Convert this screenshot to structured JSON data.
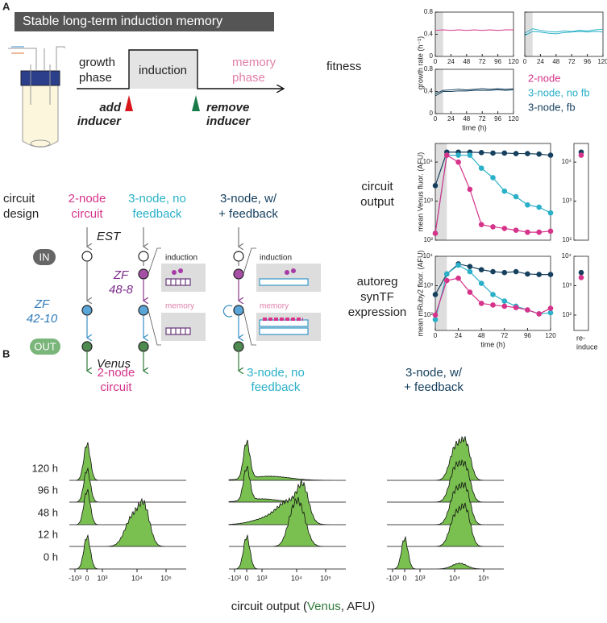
{
  "panel_labels": [
    "A",
    "B"
  ],
  "banner": "Stable long-term induction memory",
  "timeline": {
    "growth_phase": [
      "growth",
      "phase"
    ],
    "induction": "induction",
    "memory_phase": [
      "memory",
      "phase"
    ],
    "add_inducer": [
      "add",
      "inducer"
    ],
    "remove_inducer": [
      "remove",
      "inducer"
    ]
  },
  "fitness_label": "fitness",
  "diagram": {
    "circuit_design": [
      "circuit",
      "design"
    ],
    "columns": [
      [
        "2-node",
        "circuit"
      ],
      [
        "3-node, no",
        "feedback"
      ],
      [
        "3-node, w/",
        "+ feedback"
      ]
    ],
    "est": "EST",
    "in": "IN",
    "out": "OUT",
    "zf1": [
      "ZF",
      "42-10"
    ],
    "zf2": [
      "ZF",
      "48-8"
    ],
    "venus": "Venus",
    "inset_induction": "induction",
    "inset_memory": "memory"
  },
  "chart_data": [
    {
      "type": "line",
      "x": [
        0,
        12,
        24,
        36,
        48,
        60,
        72,
        84,
        96,
        108,
        120
      ],
      "xlim": [
        0,
        120
      ],
      "xticks": [
        0,
        24,
        48,
        72,
        96,
        120
      ],
      "ylim": [
        0,
        0.8
      ],
      "yticks": [
        0,
        0.4,
        0.8
      ],
      "induction_window": [
        0,
        12
      ],
      "series": [
        {
          "name": "2-node",
          "color": "#d6338a",
          "values": [
            0.47,
            0.48,
            0.47,
            0.48,
            0.47,
            0.48,
            0.47,
            0.48,
            0.47,
            0.48,
            0.48
          ]
        }
      ]
    },
    {
      "type": "line",
      "x": [
        0,
        12,
        24,
        36,
        48,
        60,
        72,
        84,
        96,
        108,
        120
      ],
      "xlim": [
        0,
        120
      ],
      "xticks": [
        0,
        24,
        48,
        72,
        96,
        120
      ],
      "ylim": [
        0,
        0.8
      ],
      "yticks": [
        0,
        0.4,
        0.8
      ],
      "induction_window": [
        0,
        12
      ],
      "series": [
        {
          "name": "3-node, no fb",
          "color": "#2ab0c8",
          "values": [
            0.42,
            0.5,
            0.47,
            0.45,
            0.44,
            0.46,
            0.45,
            0.47,
            0.46,
            0.48,
            0.49
          ]
        },
        {
          "color": "#2ab0c8",
          "values": [
            0.38,
            0.45,
            0.44,
            0.42,
            0.41,
            0.43,
            0.44,
            0.45,
            0.44,
            0.45,
            0.44
          ]
        }
      ]
    },
    {
      "type": "line",
      "x": [
        0,
        12,
        24,
        36,
        48,
        60,
        72,
        84,
        96,
        108,
        120
      ],
      "xlim": [
        0,
        120
      ],
      "xticks": [
        0,
        24,
        48,
        72,
        96,
        120
      ],
      "ylim": [
        0,
        0.8
      ],
      "yticks": [
        0,
        0.4,
        0.8
      ],
      "induction_window": [
        0,
        12
      ],
      "ylabel": "growth rate (h⁻¹)",
      "xlabel": "time (h)",
      "series": [
        {
          "name": "3-node, fb",
          "color": "#16405e",
          "values": [
            0.36,
            0.42,
            0.43,
            0.44,
            0.43,
            0.44,
            0.45,
            0.44,
            0.45,
            0.44,
            0.45
          ]
        },
        {
          "color": "#16405e",
          "values": [
            0.32,
            0.4,
            0.4,
            0.41,
            0.41,
            0.42,
            0.42,
            0.42,
            0.43,
            0.42,
            0.43
          ]
        }
      ]
    },
    {
      "type": "line",
      "markers": true,
      "log_y": true,
      "title": [
        "circuit",
        "output"
      ],
      "ylabel": "mean Venus fluor. (AFU)",
      "x": [
        0,
        12,
        24,
        36,
        48,
        60,
        72,
        84,
        96,
        108,
        120
      ],
      "xlim": [
        0,
        120
      ],
      "ylim": [
        100,
        30000
      ],
      "induction_window": [
        0,
        12
      ],
      "yticks": [
        {
          "value": 100,
          "label": "10²"
        },
        {
          "value": 1000,
          "label": "10³"
        },
        {
          "value": 10000,
          "label": "10⁴"
        }
      ],
      "series": [
        {
          "color": "#16405e",
          "values": [
            2500,
            18000,
            18000,
            18000,
            17500,
            17000,
            17000,
            16500,
            16500,
            16000,
            15000
          ]
        },
        {
          "color": "#2ab0c8",
          "values": [
            150,
            15000,
            15000,
            15000,
            7000,
            4000,
            1800,
            1300,
            800,
            700,
            500
          ]
        },
        {
          "color": "#d6338a",
          "values": [
            150,
            15000,
            10000,
            2000,
            250,
            220,
            200,
            180,
            160,
            160,
            170
          ]
        }
      ]
    },
    {
      "type": "dot",
      "log_y": true,
      "ylim": [
        100,
        30000
      ],
      "yticks": [
        {
          "value": 100,
          "label": "10²"
        },
        {
          "value": 1000,
          "label": "10³"
        },
        {
          "value": 10000,
          "label": "10⁴"
        }
      ],
      "series": [
        {
          "color": "#16405e",
          "values": [
            18000
          ]
        },
        {
          "color": "#d6338a",
          "values": [
            15000
          ]
        }
      ]
    },
    {
      "type": "line",
      "markers": true,
      "log_y": true,
      "title": [
        "autoreg",
        "synTF",
        "expression"
      ],
      "ylabel": "mean mRuby2 floor. (AFU)",
      "xlabel": "time (h)",
      "x": [
        0,
        12,
        24,
        36,
        48,
        60,
        72,
        84,
        96,
        108,
        120
      ],
      "xlim": [
        0,
        120
      ],
      "xticks": [
        0,
        24,
        48,
        72,
        96,
        120
      ],
      "ylim": [
        30,
        10000
      ],
      "induction_window": [
        0,
        12
      ],
      "yticks": [
        {
          "value": 100,
          "label": "10²"
        },
        {
          "value": 1000,
          "label": "10³"
        },
        {
          "value": 10000,
          "label": "10⁴"
        }
      ],
      "series": [
        {
          "color": "#16405e",
          "values": [
            500,
            2500,
            5500,
            4500,
            3500,
            3000,
            2800,
            3000,
            2500,
            2400,
            2400
          ]
        },
        {
          "color": "#2ab0c8",
          "values": [
            70,
            2500,
            5000,
            3000,
            1200,
            500,
            300,
            200,
            150,
            110,
            120
          ]
        },
        {
          "color": "#d6338a",
          "values": [
            100,
            1500,
            1800,
            600,
            250,
            220,
            200,
            180,
            150,
            110,
            170
          ]
        }
      ]
    },
    {
      "type": "dot",
      "log_y": true,
      "ylim": [
        30,
        10000
      ],
      "xlabel": [
        "re-",
        "induce"
      ],
      "yticks": [
        {
          "value": 100,
          "label": "10²"
        },
        {
          "value": 1000,
          "label": "10³"
        },
        {
          "value": 10000,
          "label": "10⁴"
        }
      ],
      "series": [
        {
          "color": "#16405e",
          "values": [
            2800
          ]
        },
        {
          "color": "#d6338a",
          "values": [
            1900
          ]
        }
      ]
    }
  ],
  "histograms": {
    "titles": [
      [
        "2-node",
        "circuit"
      ],
      [
        "3-node, no",
        "feedback"
      ],
      [
        "3-node, w/",
        "+ feedback"
      ]
    ],
    "title_colors": [
      "#d6338a",
      "#2ab0c8",
      "#16405e"
    ],
    "rows": [
      "120 h",
      "96 h",
      "48 h",
      "12 h",
      "0 h"
    ],
    "xticks": [
      {
        "value": -1000,
        "label": "-10³"
      },
      0,
      {
        "value": 1000,
        "label": "10³"
      },
      {
        "value": 10000,
        "label": "10⁴"
      },
      {
        "value": 100000,
        "label": "10⁵"
      }
    ],
    "xlabel": [
      "circuit output (",
      "Venus",
      ", AFU)"
    ],
    "fill": "#79c050"
  }
}
